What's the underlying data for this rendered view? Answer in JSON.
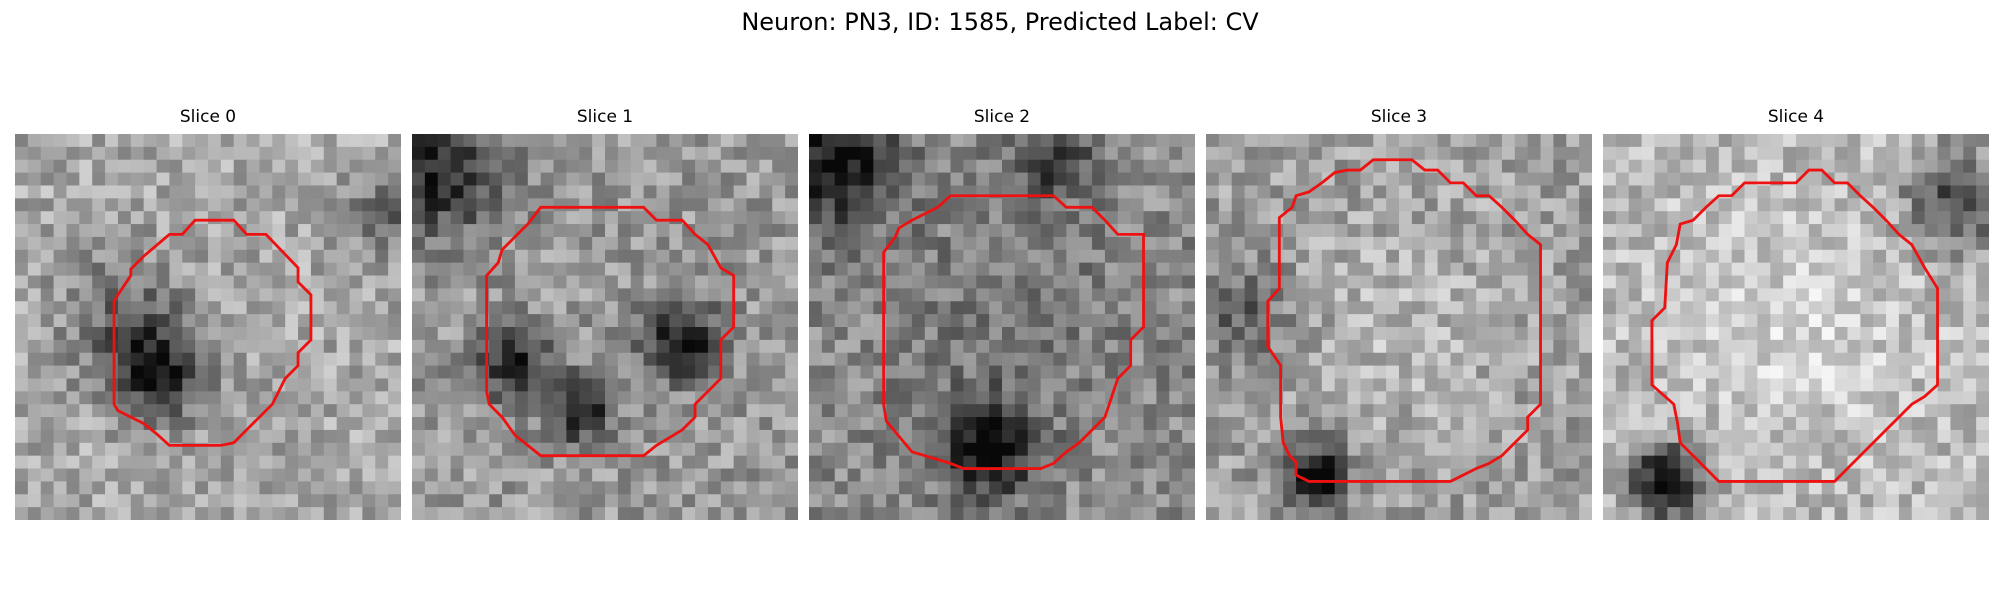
{
  "figure": {
    "title": "Neuron: PN3, ID: 1585, Predicted Label: CV"
  },
  "panels": [
    {
      "title": "Slice 0"
    },
    {
      "title": "Slice 1"
    },
    {
      "title": "Slice 2"
    },
    {
      "title": "Slice 3"
    },
    {
      "title": "Slice 4"
    }
  ],
  "colors": {
    "contour": "#ee1111",
    "background": "#ffffff"
  }
}
